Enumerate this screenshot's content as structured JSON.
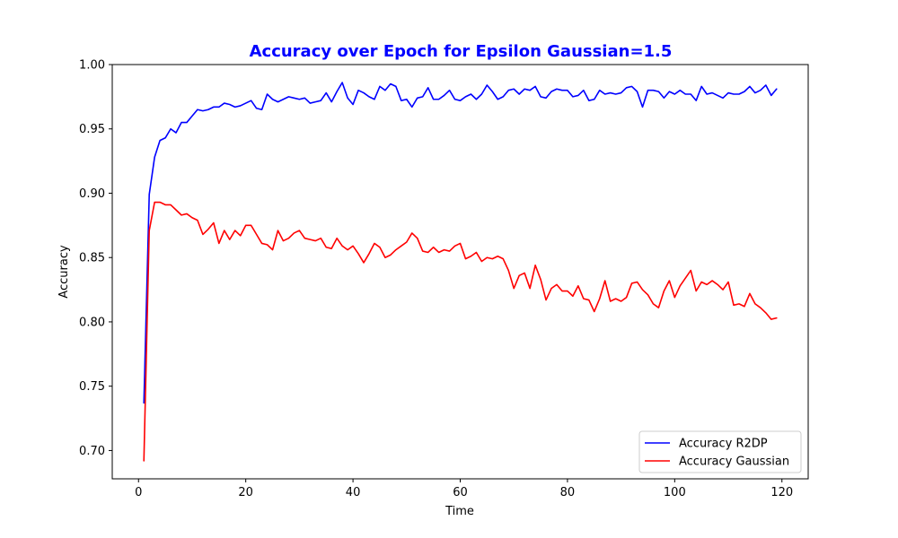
{
  "chart_data": {
    "type": "line",
    "title": "Accuracy over Epoch for Epsilon Gaussian=1.5",
    "title_color": "#0000ff",
    "xlabel": "Time",
    "ylabel": "Accuracy",
    "xlim": [
      -4.9,
      124.9
    ],
    "ylim": [
      0.678,
      1.0
    ],
    "x_ticks": [
      0,
      20,
      40,
      60,
      80,
      100,
      120
    ],
    "y_ticks": [
      0.7,
      0.75,
      0.8,
      0.85,
      0.9,
      0.95,
      1.0
    ],
    "x_tick_labels": [
      "0",
      "20",
      "40",
      "60",
      "80",
      "100",
      "120"
    ],
    "y_tick_labels": [
      "0.70",
      "0.75",
      "0.80",
      "0.85",
      "0.90",
      "0.95",
      "1.00"
    ],
    "grid": false,
    "legend_position": "bottom-right",
    "x": [
      1,
      2,
      3,
      4,
      5,
      6,
      7,
      8,
      9,
      10,
      11,
      12,
      13,
      14,
      15,
      16,
      17,
      18,
      19,
      20,
      21,
      22,
      23,
      24,
      25,
      26,
      27,
      28,
      29,
      30,
      31,
      32,
      33,
      34,
      35,
      36,
      37,
      38,
      39,
      40,
      41,
      42,
      43,
      44,
      45,
      46,
      47,
      48,
      49,
      50,
      51,
      52,
      53,
      54,
      55,
      56,
      57,
      58,
      59,
      60,
      61,
      62,
      63,
      64,
      65,
      66,
      67,
      68,
      69,
      70,
      71,
      72,
      73,
      74,
      75,
      76,
      77,
      78,
      79,
      80,
      81,
      82,
      83,
      84,
      85,
      86,
      87,
      88,
      89,
      90,
      91,
      92,
      93,
      94,
      95,
      96,
      97,
      98,
      99,
      100,
      101,
      102,
      103,
      104,
      105,
      106,
      107,
      108,
      109,
      110,
      111,
      112,
      113,
      114,
      115,
      116,
      117,
      118,
      119
    ],
    "series": [
      {
        "name": "Accuracy R2DP",
        "color": "#0000ff",
        "values": [
          0.737,
          0.899,
          0.928,
          0.941,
          0.943,
          0.95,
          0.947,
          0.955,
          0.955,
          0.96,
          0.965,
          0.964,
          0.965,
          0.967,
          0.967,
          0.97,
          0.969,
          0.967,
          0.968,
          0.97,
          0.972,
          0.966,
          0.965,
          0.977,
          0.973,
          0.971,
          0.973,
          0.975,
          0.974,
          0.973,
          0.974,
          0.97,
          0.971,
          0.972,
          0.978,
          0.971,
          0.979,
          0.986,
          0.974,
          0.969,
          0.98,
          0.978,
          0.975,
          0.973,
          0.983,
          0.98,
          0.985,
          0.983,
          0.972,
          0.973,
          0.967,
          0.974,
          0.975,
          0.982,
          0.973,
          0.973,
          0.976,
          0.98,
          0.973,
          0.972,
          0.975,
          0.977,
          0.973,
          0.977,
          0.984,
          0.979,
          0.973,
          0.975,
          0.98,
          0.981,
          0.977,
          0.981,
          0.98,
          0.983,
          0.975,
          0.974,
          0.979,
          0.981,
          0.98,
          0.98,
          0.975,
          0.976,
          0.98,
          0.972,
          0.973,
          0.98,
          0.977,
          0.978,
          0.977,
          0.978,
          0.982,
          0.983,
          0.979,
          0.967,
          0.98,
          0.98,
          0.979,
          0.974,
          0.979,
          0.977,
          0.98,
          0.977,
          0.977,
          0.972,
          0.983,
          0.977,
          0.978,
          0.976,
          0.974,
          0.978,
          0.977,
          0.977,
          0.979,
          0.983,
          0.978,
          0.98,
          0.984,
          0.976,
          0.981
        ]
      },
      {
        "name": "Accuracy Gaussian",
        "color": "#ff0000",
        "values": [
          0.692,
          0.871,
          0.893,
          0.893,
          0.891,
          0.891,
          0.887,
          0.883,
          0.884,
          0.881,
          0.879,
          0.868,
          0.872,
          0.877,
          0.861,
          0.871,
          0.864,
          0.871,
          0.867,
          0.875,
          0.875,
          0.868,
          0.861,
          0.86,
          0.856,
          0.871,
          0.863,
          0.865,
          0.869,
          0.871,
          0.865,
          0.864,
          0.863,
          0.865,
          0.858,
          0.857,
          0.865,
          0.859,
          0.856,
          0.859,
          0.853,
          0.846,
          0.853,
          0.861,
          0.858,
          0.85,
          0.852,
          0.856,
          0.859,
          0.862,
          0.869,
          0.865,
          0.855,
          0.854,
          0.858,
          0.854,
          0.856,
          0.855,
          0.859,
          0.861,
          0.849,
          0.851,
          0.854,
          0.847,
          0.85,
          0.849,
          0.851,
          0.849,
          0.84,
          0.826,
          0.836,
          0.838,
          0.826,
          0.844,
          0.833,
          0.817,
          0.826,
          0.829,
          0.824,
          0.824,
          0.82,
          0.828,
          0.818,
          0.817,
          0.808,
          0.818,
          0.832,
          0.816,
          0.818,
          0.816,
          0.819,
          0.83,
          0.831,
          0.825,
          0.821,
          0.814,
          0.811,
          0.824,
          0.832,
          0.819,
          0.828,
          0.834,
          0.84,
          0.824,
          0.831,
          0.829,
          0.832,
          0.829,
          0.825,
          0.831,
          0.813,
          0.814,
          0.812,
          0.822,
          0.814,
          0.811,
          0.807,
          0.802,
          0.803
        ]
      }
    ]
  }
}
